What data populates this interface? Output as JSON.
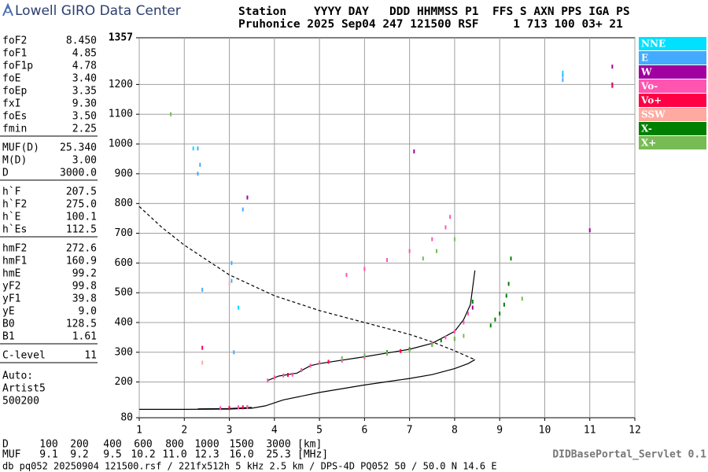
{
  "header": {
    "logo": "Lowell GIRO Data Center",
    "station_row": "Station    YYYY DAY   DDD HHMMSS P1  FFS S AXN PPS IGA PS",
    "value_row": "Pruhonice 2025 Sep04 247 121500 RSF     1 713 100 03+ 21"
  },
  "parameters": [
    [
      {
        "name": "foF2",
        "value": "8.450"
      },
      {
        "name": "foF1",
        "value": "4.85"
      },
      {
        "name": "foF1p",
        "value": "4.78"
      },
      {
        "name": "foE",
        "value": "3.40"
      },
      {
        "name": "foEp",
        "value": "3.35"
      },
      {
        "name": "fxI",
        "value": "9.30"
      },
      {
        "name": "foEs",
        "value": "3.50"
      },
      {
        "name": "fmin",
        "value": "2.25"
      }
    ],
    [
      {
        "name": "MUF(D)",
        "value": "25.340"
      },
      {
        "name": "M(D)",
        "value": "3.00"
      },
      {
        "name": "D",
        "value": "3000.0"
      }
    ],
    [
      {
        "name": "h`F",
        "value": "207.5"
      },
      {
        "name": "h`F2",
        "value": "275.0"
      },
      {
        "name": "h`E",
        "value": "100.1"
      },
      {
        "name": "h`Es",
        "value": "112.5"
      }
    ],
    [
      {
        "name": "hmF2",
        "value": "272.6"
      },
      {
        "name": "hmF1",
        "value": "160.9"
      },
      {
        "name": "hmE",
        "value": "99.2"
      },
      {
        "name": "yF2",
        "value": "99.8"
      },
      {
        "name": "yF1",
        "value": "39.8"
      },
      {
        "name": "yE",
        "value": "9.0"
      },
      {
        "name": "B0",
        "value": "128.5"
      },
      {
        "name": "B1",
        "value": "1.61"
      }
    ],
    [
      {
        "name": "C-level",
        "value": "11"
      }
    ]
  ],
  "scaling": [
    "Auto:",
    "Artist5",
    "500200"
  ],
  "distance_row": {
    "label": "D",
    "values": [
      "100",
      "200",
      "400",
      "600",
      "800",
      "1000",
      "1500",
      "3000"
    ],
    "unit": "[km]"
  },
  "muf_row": {
    "label": "MUF",
    "values": [
      "9.1",
      "9.2",
      "9.5",
      "10.2",
      "11.0",
      "12.3",
      "16.0",
      "25.3"
    ],
    "unit": "[MHz]"
  },
  "servlet": "DIDBasePortal_Servlet 0.1",
  "footer": "db pq052 20250904 121500.rsf / 221fx512h 5 kHz 2.5 km / DPS-4D PQ052 50 / 50.0 N 14.6 E",
  "chart_data": {
    "type": "scatter",
    "xlim": [
      1,
      12
    ],
    "xticks": [
      1,
      2,
      3,
      4,
      5,
      6,
      7,
      8,
      9,
      10,
      11,
      12
    ],
    "ylim": [
      80,
      1357
    ],
    "yticks": [
      80,
      200,
      300,
      400,
      500,
      600,
      700,
      800,
      900,
      1000,
      1100,
      1200,
      1357
    ],
    "grid": true,
    "series": [
      {
        "name": "NNE",
        "color": "#00e0ff",
        "x": [
          2.2,
          10.4,
          3.2
        ],
        "values": [
          985,
          1240,
          450
        ]
      },
      {
        "name": "E",
        "color": "#44aaff",
        "x": [
          2.3,
          2.35,
          2.3,
          3.05,
          3.05,
          3.1,
          10.4,
          10.4,
          2.4,
          3.3
        ],
        "values": [
          985,
          930,
          900,
          600,
          540,
          300,
          1230,
          1215,
          510,
          780
        ]
      },
      {
        "name": "W",
        "color": "#a000a0",
        "x": [
          3.4,
          11.5,
          11.5,
          11.0,
          7.1,
          8.4
        ],
        "values": [
          820,
          1200,
          1260,
          710,
          975,
          450
        ]
      },
      {
        "name": "Vo-",
        "color": "#ff55b0",
        "x": [
          2.8,
          3.0,
          3.2,
          3.4,
          3.85,
          4.0,
          4.2,
          4.4,
          4.6,
          4.8,
          5.0,
          5.5,
          6.0,
          6.5,
          7.0,
          7.5,
          7.8,
          8.0,
          8.2,
          8.3,
          5.6,
          6.0,
          6.5,
          7.0,
          7.5,
          7.8,
          7.9
        ],
        "values": [
          112,
          113,
          115,
          116,
          205,
          215,
          222,
          225,
          240,
          255,
          265,
          272,
          283,
          295,
          310,
          330,
          350,
          370,
          400,
          430,
          560,
          580,
          610,
          640,
          680,
          720,
          755
        ]
      },
      {
        "name": "Vo+",
        "color": "#ff0044",
        "x": [
          2.4,
          11.5,
          3.0,
          3.3,
          4.3,
          5.2,
          6.8
        ],
        "values": [
          315,
          1195,
          112,
          115,
          224,
          268,
          304
        ]
      },
      {
        "name": "SSW",
        "color": "#ffaaa0",
        "x": [
          2.4,
          3.0
        ],
        "values": [
          265,
          530
        ]
      },
      {
        "name": "X-",
        "color": "#008000",
        "x": [
          8.8,
          8.9,
          9.0,
          9.1,
          9.15,
          9.2,
          9.25,
          7.7,
          8.4,
          6.5,
          7.0,
          7.5,
          8.0
        ],
        "values": [
          390,
          410,
          430,
          460,
          490,
          530,
          615,
          340,
          470,
          300,
          310,
          325,
          345
        ]
      },
      {
        "name": "X+",
        "color": "#77bb55",
        "x": [
          6.0,
          6.5,
          7.0,
          7.5,
          8.0,
          8.2,
          7.3,
          7.6,
          8.0,
          5.5,
          1.7,
          9.5
        ],
        "values": [
          290,
          296,
          305,
          325,
          345,
          355,
          615,
          640,
          680,
          280,
          1100,
          480
        ]
      }
    ],
    "curves": [
      {
        "style": "solid",
        "color": "#000000",
        "x": [
          1,
          2,
          3,
          3.5,
          3.8,
          4.2,
          5,
          6,
          7,
          7.5,
          8,
          8.3,
          8.45
        ],
        "values": [
          108,
          108,
          109,
          112,
          120,
          140,
          165,
          190,
          212,
          225,
          245,
          262,
          275
        ]
      },
      {
        "style": "solid",
        "color": "#000000",
        "x": [
          3.85,
          4.1,
          4.5,
          4.8,
          5,
          6,
          7,
          7.5,
          8,
          8.2,
          8.35,
          8.45
        ],
        "values": [
          205,
          220,
          230,
          255,
          262,
          285,
          310,
          330,
          370,
          410,
          460,
          575
        ]
      },
      {
        "style": "solid",
        "color": "#000000",
        "x": [
          2.3,
          3.0,
          3.5
        ],
        "values": [
          110,
          111,
          115
        ]
      },
      {
        "style": "dashed",
        "color": "#000000",
        "x": [
          1,
          1.5,
          2,
          2.5,
          3,
          3.5,
          4,
          5,
          6,
          7,
          7.5,
          8,
          8.3,
          8.45
        ],
        "values": [
          790,
          720,
          660,
          610,
          560,
          525,
          490,
          440,
          400,
          360,
          335,
          305,
          285,
          275
        ]
      }
    ]
  }
}
